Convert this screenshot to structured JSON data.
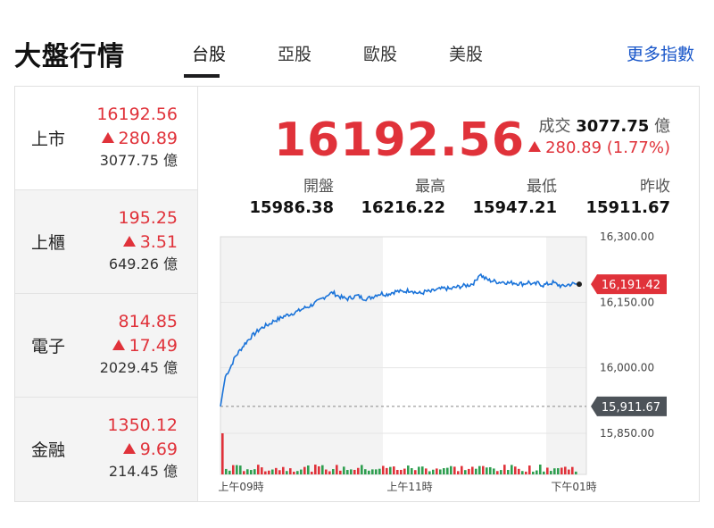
{
  "header": {
    "title": "大盤行情",
    "tabs": [
      {
        "label": "台股",
        "active": true
      },
      {
        "label": "亞股",
        "active": false
      },
      {
        "label": "歐股",
        "active": false
      },
      {
        "label": "美股",
        "active": false
      }
    ],
    "more_link": "更多指數"
  },
  "sidebar": {
    "items": [
      {
        "name": "上市",
        "price": "16192.56",
        "change": "280.89",
        "volume": "3077.75 億"
      },
      {
        "name": "上櫃",
        "price": "195.25",
        "change": "3.51",
        "volume": "649.26 億"
      },
      {
        "name": "電子",
        "price": "814.85",
        "change": "17.49",
        "volume": "2029.45 億"
      },
      {
        "name": "金融",
        "price": "1350.12",
        "change": "9.69",
        "volume": "214.45 億"
      }
    ]
  },
  "quote": {
    "price": "16192.56",
    "turnover_label": "成交",
    "turnover_value": "3077.75",
    "turnover_unit": "億",
    "change": "280.89 (1.77%)",
    "stats": [
      {
        "label": "開盤",
        "value": "15986.38"
      },
      {
        "label": "最高",
        "value": "16216.22"
      },
      {
        "label": "最低",
        "value": "15947.21"
      },
      {
        "label": "昨收",
        "value": "15911.67"
      }
    ]
  },
  "colors": {
    "up": "#e0323a",
    "line": "#1a73d9",
    "tag_prev": "#4d5359"
  },
  "chart_data": {
    "type": "line",
    "y_ticks": [
      "16,300.00",
      "16,150.00",
      "16,000.00",
      "15,850.00"
    ],
    "x_ticks": [
      "上午09時",
      "上午11時",
      "下午01時"
    ],
    "ylim": [
      15850,
      16300
    ],
    "last_label": "16,191.42",
    "prev_close_label": "15,911.67",
    "prev_close": 15911.67,
    "series": [
      {
        "values": [
          15911.67,
          15980,
          16000,
          16025,
          16040,
          16055,
          16068,
          16078,
          16088,
          16095,
          16100,
          16108,
          16112,
          16118,
          16122,
          16126,
          16130,
          16136,
          16140,
          16146,
          16152,
          16160,
          16168,
          16172,
          16165,
          16160,
          16158,
          16162,
          16165,
          16160,
          16158,
          16162,
          16168,
          16170,
          16168,
          16172,
          16175,
          16174,
          16176,
          16178,
          16172,
          16170,
          16175,
          16174,
          16178,
          16180,
          16182,
          16180,
          16184,
          16186,
          16188,
          16190,
          16196,
          16215,
          16205,
          16200,
          16198,
          16196,
          16197,
          16194,
          16195,
          16193,
          16192,
          16196,
          16190,
          16194,
          16189,
          16192,
          16195,
          16190,
          16186,
          16190,
          16192,
          16191.42
        ]
      }
    ]
  }
}
